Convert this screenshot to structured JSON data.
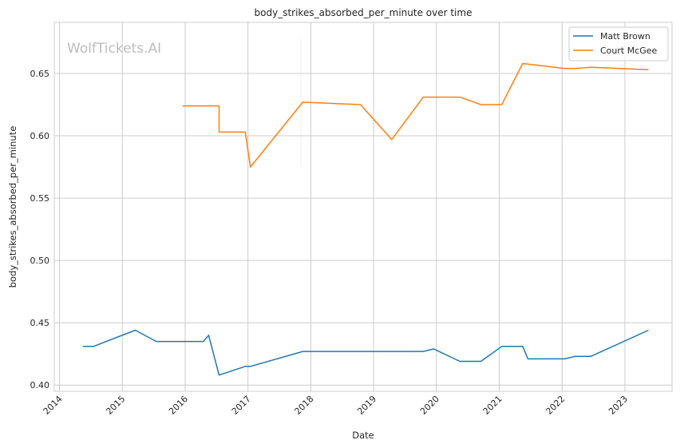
{
  "watermark": "WolfTickets.AI",
  "colors": {
    "Matt Brown": "#1f77b4",
    "Court McGee": "#ff7f0e"
  },
  "chart_data": {
    "type": "line",
    "title": "body_strikes_absorbed_per_minute over time",
    "xlabel": "Date",
    "ylabel": "body_strikes_absorbed_per_minute",
    "xlim": [
      "2013-12",
      "2023-10"
    ],
    "ylim": [
      0.395,
      0.691
    ],
    "grid": true,
    "legend": "top-right",
    "x_ticks": [
      "2014",
      "2015",
      "2016",
      "2017",
      "2018",
      "2019",
      "2020",
      "2021",
      "2022",
      "2023"
    ],
    "y_ticks": [
      "0.40",
      "0.45",
      "0.50",
      "0.55",
      "0.60",
      "0.65"
    ],
    "series": [
      {
        "name": "Matt Brown",
        "x": [
          "2014-05",
          "2014-07",
          "2015-03",
          "2015-07",
          "2016-04",
          "2016-05",
          "2016-07",
          "2016-12",
          "2017-01",
          "2017-11",
          "2019-10",
          "2019-12",
          "2020-05",
          "2020-09",
          "2021-01",
          "2021-05",
          "2021-06",
          "2022-01",
          "2022-03",
          "2022-06",
          "2023-05"
        ],
        "y": [
          0.431,
          0.431,
          0.444,
          0.435,
          0.435,
          0.44,
          0.408,
          0.415,
          0.415,
          0.427,
          0.427,
          0.429,
          0.419,
          0.419,
          0.431,
          0.431,
          0.421,
          0.421,
          0.423,
          0.423,
          0.444
        ]
      },
      {
        "name": "Court McGee",
        "x": [
          "2015-12",
          "2016-07",
          "2016-07",
          "2016-12",
          "2017-01",
          "2017-11",
          "2018-10",
          "2019-04",
          "2019-10",
          "2020-05",
          "2020-09",
          "2021-01",
          "2021-05",
          "2022-01",
          "2022-03",
          "2022-06",
          "2023-05"
        ],
        "y": [
          0.624,
          0.624,
          0.603,
          0.603,
          0.575,
          0.627,
          0.625,
          0.597,
          0.631,
          0.631,
          0.625,
          0.625,
          0.658,
          0.654,
          0.654,
          0.655,
          0.653
        ]
      }
    ]
  }
}
